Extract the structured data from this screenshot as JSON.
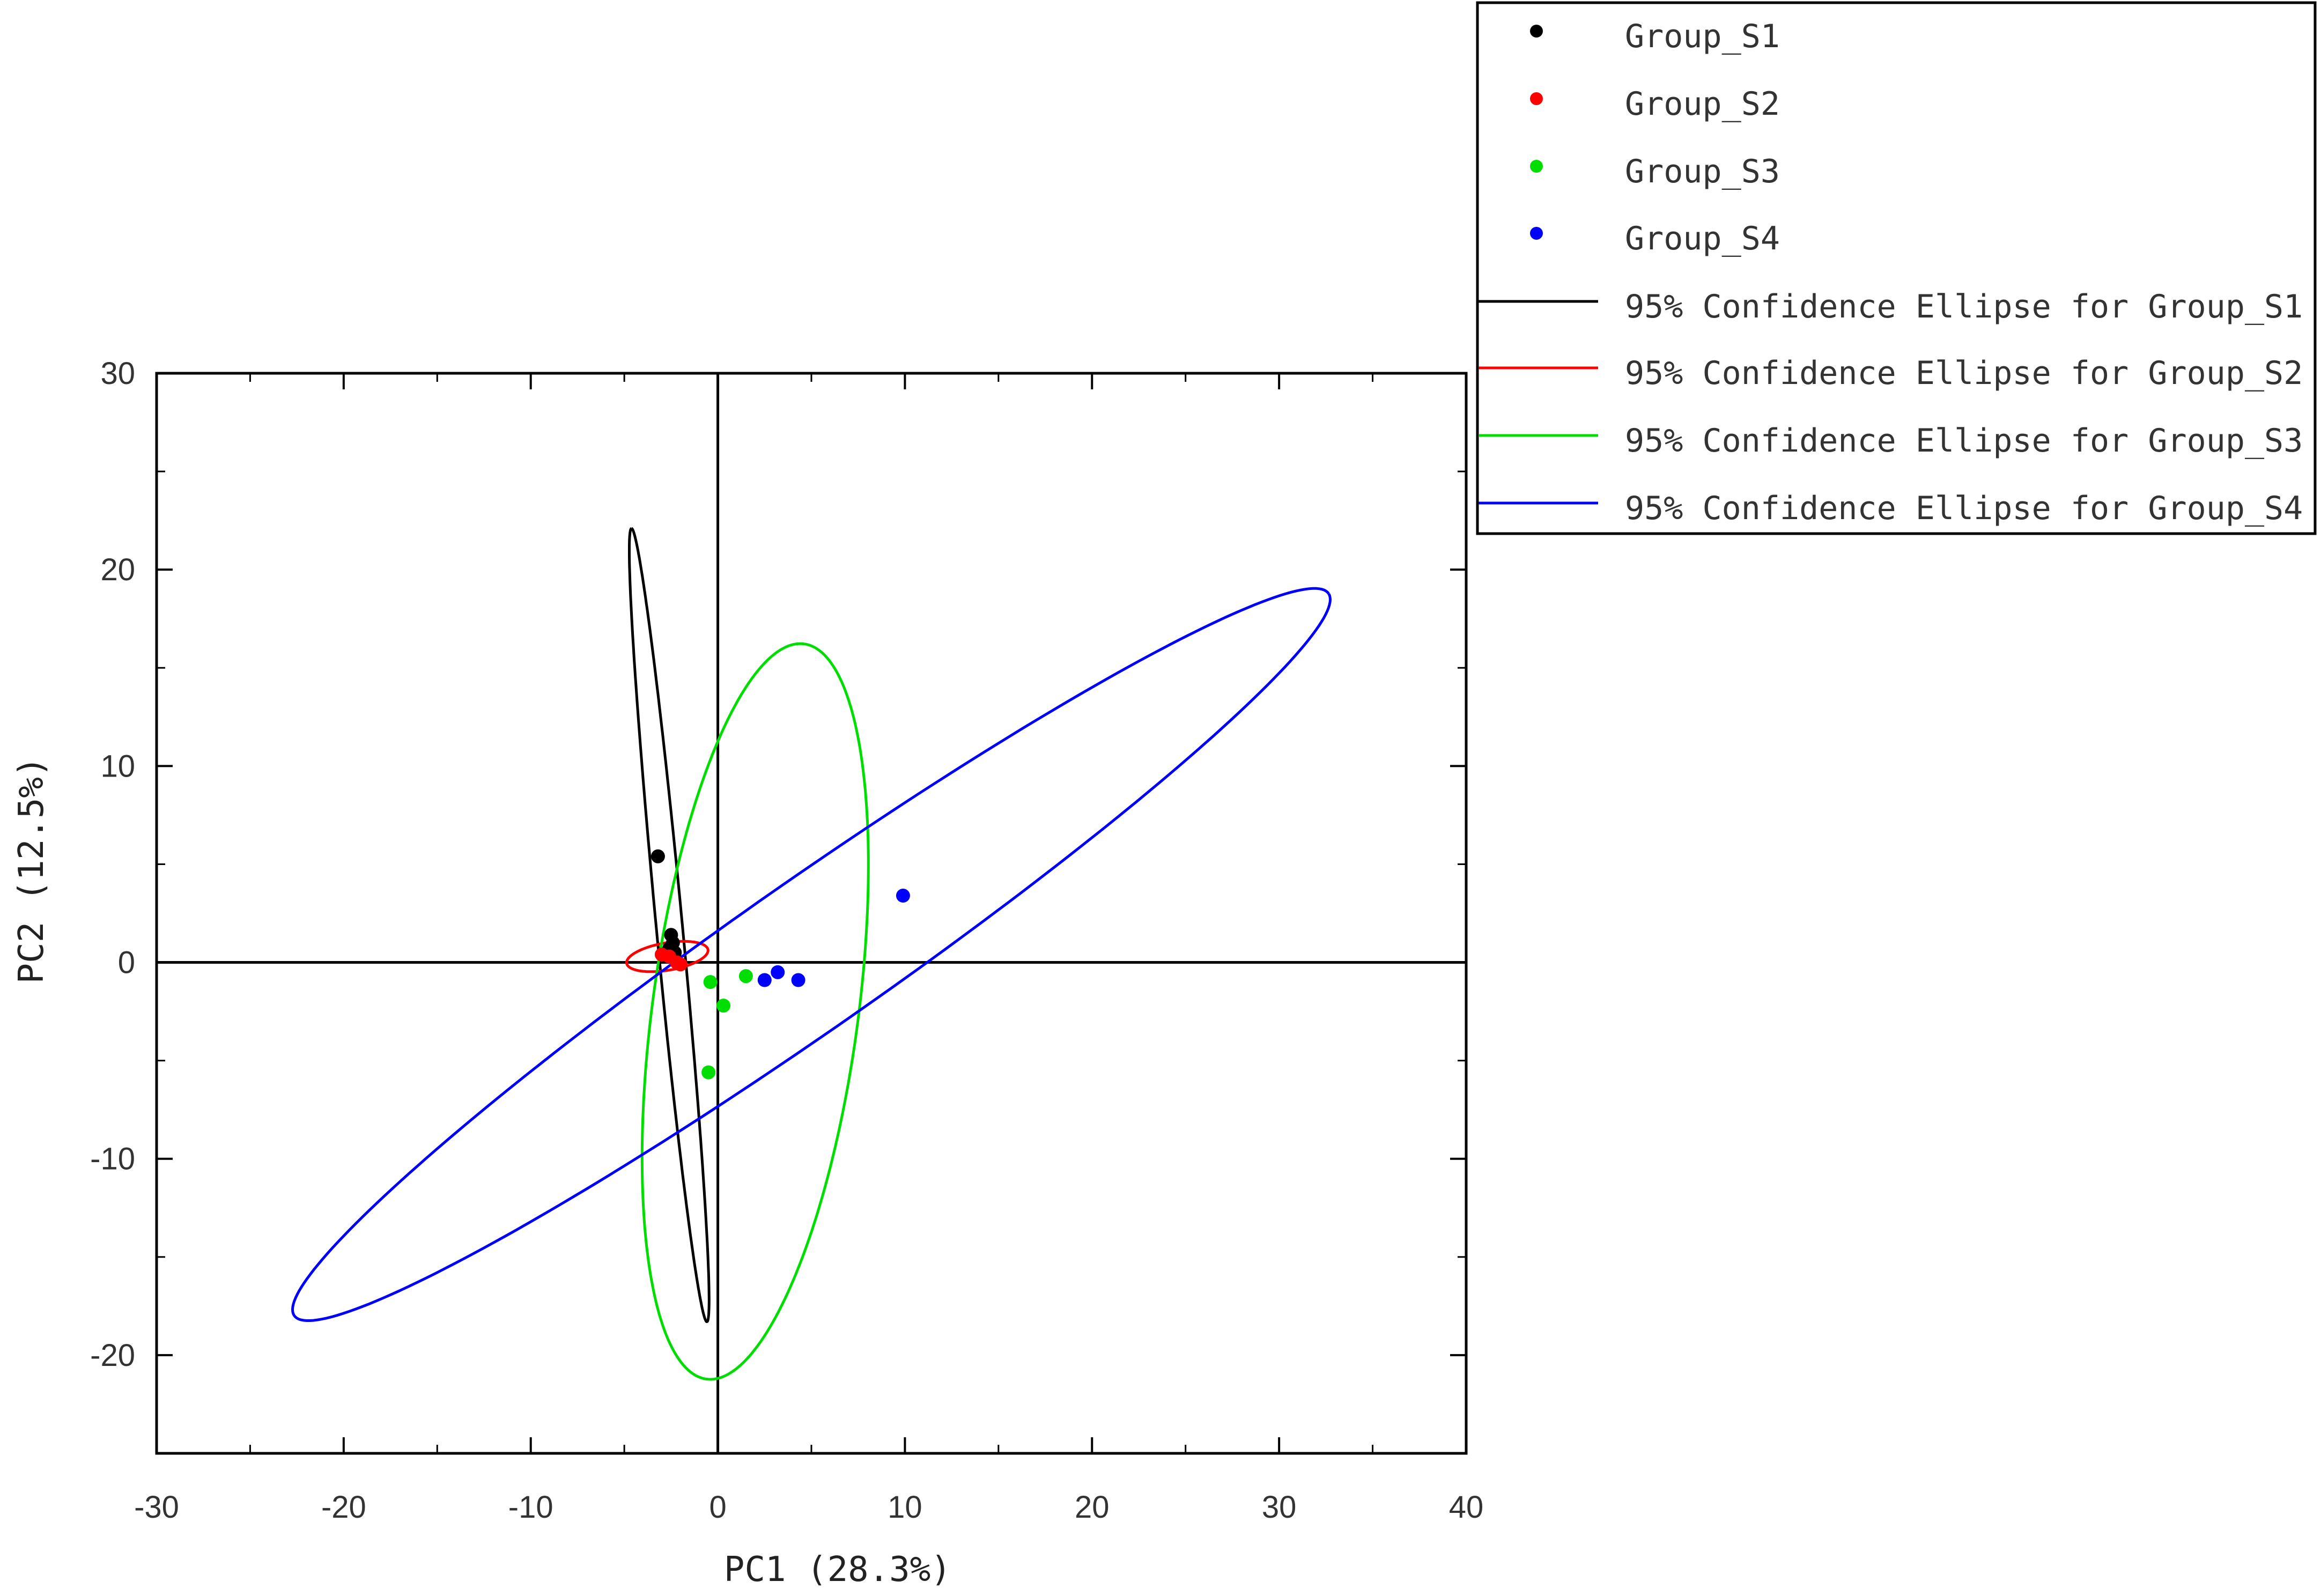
{
  "chart_data": {
    "type": "scatter",
    "title": "",
    "xlabel": "PC1 (28.3%)",
    "ylabel": "PC2 (12.5%)",
    "xlim": [
      -30,
      40
    ],
    "ylim": [
      -25,
      30
    ],
    "x_ticks": [
      -30,
      -20,
      -10,
      0,
      10,
      20,
      30,
      40
    ],
    "y_ticks": [
      -20,
      -10,
      0,
      10,
      20,
      30
    ],
    "x_tick_labels": [
      "-30",
      "-20",
      "-10",
      "0",
      "10",
      "20",
      "30",
      "40"
    ],
    "y_tick_labels": [
      "-20",
      "-10",
      "0",
      "10",
      "20",
      "30"
    ],
    "reference_lines": {
      "x": 0,
      "y": 0
    },
    "grid": false,
    "legend_position": "top-right, outside plot",
    "series": [
      {
        "name": "Group_S1",
        "color": "#000000",
        "points": [
          [
            -3.2,
            5.4
          ],
          [
            -2.5,
            1.4
          ],
          [
            -2.4,
            1.0
          ],
          [
            -2.6,
            0.7
          ],
          [
            -2.3,
            0.5
          ]
        ]
      },
      {
        "name": "Group_S2",
        "color": "#ff0000",
        "points": [
          [
            -3.0,
            0.4
          ],
          [
            -2.6,
            0.3
          ],
          [
            -2.2,
            0.0
          ],
          [
            -2.0,
            -0.1
          ]
        ]
      },
      {
        "name": "Group_S3",
        "color": "#00dd00",
        "points": [
          [
            -0.4,
            -1.0
          ],
          [
            0.3,
            -2.2
          ],
          [
            -0.5,
            -5.6
          ],
          [
            1.5,
            -0.7
          ]
        ]
      },
      {
        "name": "Group_S4",
        "color": "#0000ff",
        "points": [
          [
            2.5,
            -0.9
          ],
          [
            3.2,
            -0.5
          ],
          [
            4.3,
            -0.9
          ],
          [
            9.9,
            3.4
          ]
        ]
      }
    ],
    "ellipses": [
      {
        "name": "95% Confidence Ellipse for Group_S1",
        "color": "#000000",
        "center": [
          -2.6,
          1.9
        ],
        "semi_major": 20.3,
        "semi_minor": 0.7,
        "angle_deg": 95.7
      },
      {
        "name": "95% Confidence Ellipse for Group_S2",
        "color": "#ff0000",
        "center": [
          -2.7,
          0.3
        ],
        "semi_major": 2.2,
        "semi_minor": 0.7,
        "angle_deg": 9
      },
      {
        "name": "95% Confidence Ellipse for Group_S3",
        "color": "#00dd00",
        "center": [
          2.0,
          -2.5
        ],
        "semi_major": 18.9,
        "semi_minor": 5.5,
        "angle_deg": 82
      },
      {
        "name": "95% Confidence Ellipse for Group_S4",
        "color": "#0000ff",
        "center": [
          5.0,
          0.4
        ],
        "semi_major": 33.2,
        "semi_minor": 3.8,
        "angle_deg": 33.6
      }
    ],
    "legend": {
      "entries": [
        {
          "label": "Group_S1",
          "kind": "marker",
          "color": "#000000"
        },
        {
          "label": "Group_S2",
          "kind": "marker",
          "color": "#ff0000"
        },
        {
          "label": "Group_S3",
          "kind": "marker",
          "color": "#00dd00"
        },
        {
          "label": "Group_S4",
          "kind": "marker",
          "color": "#0000ff"
        },
        {
          "label": "95% Confidence Ellipse for Group_S1",
          "kind": "line",
          "color": "#000000"
        },
        {
          "label": "95% Confidence Ellipse for Group_S2",
          "kind": "line",
          "color": "#ff0000"
        },
        {
          "label": "95% Confidence Ellipse for Group_S3",
          "kind": "line",
          "color": "#00dd00"
        },
        {
          "label": "95% Confidence Ellipse for Group_S4",
          "kind": "line",
          "color": "#0000ff"
        }
      ]
    }
  }
}
